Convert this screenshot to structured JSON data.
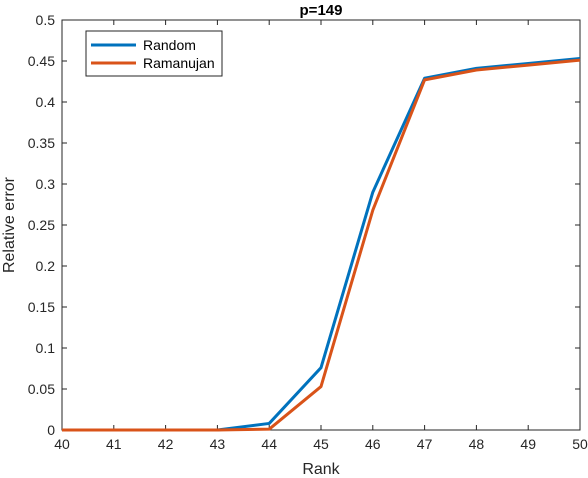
{
  "chart_data": {
    "type": "line",
    "title": "p=149",
    "xlabel": "Rank",
    "ylabel": "Relative error",
    "xlim": [
      40,
      50
    ],
    "ylim": [
      0,
      0.5
    ],
    "x_ticks": [
      "40",
      "41",
      "42",
      "43",
      "44",
      "45",
      "46",
      "47",
      "48",
      "49",
      "50"
    ],
    "y_ticks": [
      "0",
      "0.05",
      "0.1",
      "0.15",
      "0.2",
      "0.25",
      "0.3",
      "0.35",
      "0.4",
      "0.45",
      "0.5"
    ],
    "x": [
      40,
      41,
      42,
      43,
      44,
      45,
      46,
      47,
      48,
      49,
      50
    ],
    "series": [
      {
        "name": "Random",
        "color": "#0072BD",
        "values": [
          0,
          0,
          0,
          0,
          0.008,
          0.076,
          0.29,
          0.429,
          0.441,
          0.447,
          0.453
        ]
      },
      {
        "name": "Ramanujan",
        "color": "#D95319",
        "values": [
          0,
          0,
          0,
          0,
          0.001,
          0.053,
          0.268,
          0.427,
          0.439,
          0.445,
          0.451
        ]
      }
    ],
    "grid": false,
    "legend_position": "top-left"
  }
}
